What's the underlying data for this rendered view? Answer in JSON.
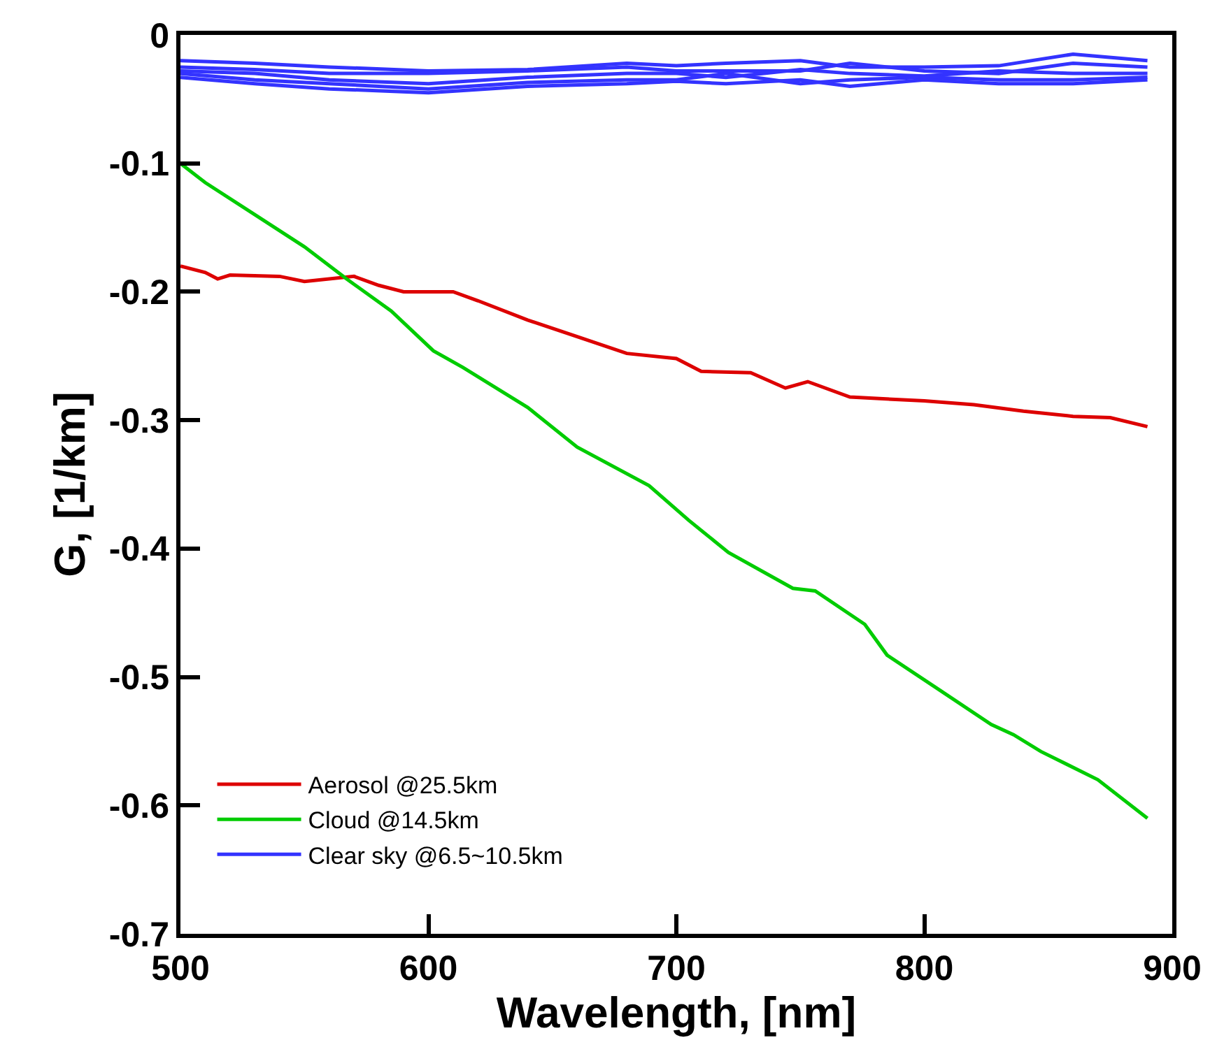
{
  "chart_data": {
    "type": "line",
    "xlabel": "Wavelength, [nm]",
    "ylabel": "G, [1/km]",
    "xlim": [
      500,
      900
    ],
    "xticks": [
      500,
      600,
      700,
      800,
      900
    ],
    "ylim": [
      -0.7,
      0
    ],
    "yticks": [
      0,
      -0.1,
      -0.2,
      -0.3,
      -0.4,
      -0.5,
      -0.6,
      -0.7
    ],
    "grid": false,
    "legend": "bottom left",
    "marker": "none",
    "line_style": "solid",
    "series": [
      {
        "name": "Aerosol @25.5km",
        "color": "#dd0000",
        "x": [
          500,
          510,
          515,
          520,
          540,
          550,
          570,
          580,
          590,
          610,
          620,
          640,
          660,
          680,
          700,
          710,
          730,
          744,
          753,
          770,
          800,
          820,
          840,
          860,
          875,
          890
        ],
        "values": [
          -0.18,
          -0.185,
          -0.19,
          -0.187,
          -0.188,
          -0.192,
          -0.188,
          -0.195,
          -0.2,
          -0.2,
          -0.207,
          -0.222,
          -0.235,
          -0.248,
          -0.252,
          -0.262,
          -0.263,
          -0.275,
          -0.27,
          -0.282,
          -0.285,
          -0.288,
          -0.293,
          -0.297,
          -0.298,
          -0.305
        ]
      },
      {
        "name": "Cloud @14.5km",
        "color": "#00cc00",
        "x": [
          500,
          510,
          530,
          550,
          567,
          585,
          602,
          614,
          640,
          660,
          689,
          705,
          721,
          747,
          756,
          776,
          785,
          806,
          827,
          836,
          847,
          870,
          890
        ],
        "values": [
          -0.1,
          -0.115,
          -0.14,
          -0.165,
          -0.19,
          -0.215,
          -0.246,
          -0.259,
          -0.29,
          -0.321,
          -0.351,
          -0.378,
          -0.403,
          -0.431,
          -0.433,
          -0.459,
          -0.483,
          -0.51,
          -0.537,
          -0.545,
          -0.558,
          -0.58,
          -0.61
        ]
      },
      {
        "name": "Clear sky @6.5~10.5km",
        "color": "#3333ff",
        "x": [
          500,
          530,
          560,
          600,
          640,
          680,
          700,
          720,
          750,
          770,
          800,
          830,
          860,
          890
        ],
        "values": [
          -0.02,
          -0.022,
          -0.025,
          -0.028,
          -0.027,
          -0.022,
          -0.024,
          -0.022,
          -0.02,
          -0.025,
          -0.025,
          -0.024,
          -0.015,
          -0.02
        ]
      },
      {
        "color": "#3333ff",
        "x": [
          500,
          530,
          560,
          600,
          640,
          680,
          700,
          720,
          750,
          770,
          800,
          830,
          860,
          890
        ],
        "values": [
          -0.025,
          -0.027,
          -0.03,
          -0.03,
          -0.028,
          -0.025,
          -0.028,
          -0.028,
          -0.028,
          -0.022,
          -0.028,
          -0.03,
          -0.022,
          -0.025
        ]
      },
      {
        "color": "#3333ff",
        "x": [
          500,
          530,
          560,
          600,
          640,
          680,
          700,
          720,
          750,
          770,
          800,
          830,
          860,
          890
        ],
        "values": [
          -0.028,
          -0.03,
          -0.035,
          -0.038,
          -0.033,
          -0.03,
          -0.03,
          -0.033,
          -0.027,
          -0.03,
          -0.032,
          -0.028,
          -0.03,
          -0.03
        ]
      },
      {
        "color": "#3333ff",
        "x": [
          500,
          530,
          560,
          600,
          640,
          680,
          700,
          720,
          750,
          770,
          800,
          830,
          860,
          890
        ],
        "values": [
          -0.03,
          -0.035,
          -0.038,
          -0.042,
          -0.037,
          -0.035,
          -0.035,
          -0.03,
          -0.038,
          -0.035,
          -0.033,
          -0.035,
          -0.035,
          -0.033
        ]
      },
      {
        "color": "#3333ff",
        "x": [
          500,
          530,
          560,
          600,
          640,
          680,
          700,
          720,
          750,
          770,
          800,
          830,
          860,
          890
        ],
        "values": [
          -0.033,
          -0.038,
          -0.042,
          -0.045,
          -0.04,
          -0.038,
          -0.036,
          -0.038,
          -0.035,
          -0.04,
          -0.035,
          -0.038,
          -0.038,
          -0.035
        ]
      }
    ]
  }
}
